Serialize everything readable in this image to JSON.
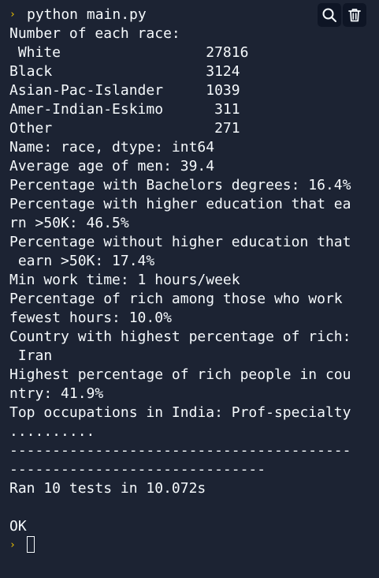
{
  "terminal": {
    "prompt_symbol": "›",
    "command": "python main.py",
    "output": [
      "Number of each race:",
      " White                 27816",
      "Black                  3124",
      "Asian-Pac-Islander     1039",
      "Amer-Indian-Eskimo      311",
      "Other                   271",
      "Name: race, dtype: int64",
      "Average age of men: 39.4",
      "Percentage with Bachelors degrees: 16.4%",
      "Percentage with higher education that ea",
      "rn >50K: 46.5%",
      "Percentage without higher education that",
      " earn >50K: 17.4%",
      "Min work time: 1 hours/week",
      "Percentage of rich among those who work",
      "fewest hours: 10.0%",
      "Country with highest percentage of rich:",
      " Iran",
      "Highest percentage of rich people in cou",
      "ntry: 41.9%",
      "Top occupations in India: Prof-specialty",
      "..........",
      "----------------------------------------",
      "------------------------------",
      "Ran 10 tests in 10.072s",
      "",
      "OK"
    ]
  },
  "toolbar": {
    "search_icon": "search-icon",
    "clear_icon": "trash-icon"
  },
  "colors": {
    "background": "#1c2333",
    "text": "#f5f9fc",
    "prompt": "#f0c400",
    "button_bg": "#0e1525"
  }
}
